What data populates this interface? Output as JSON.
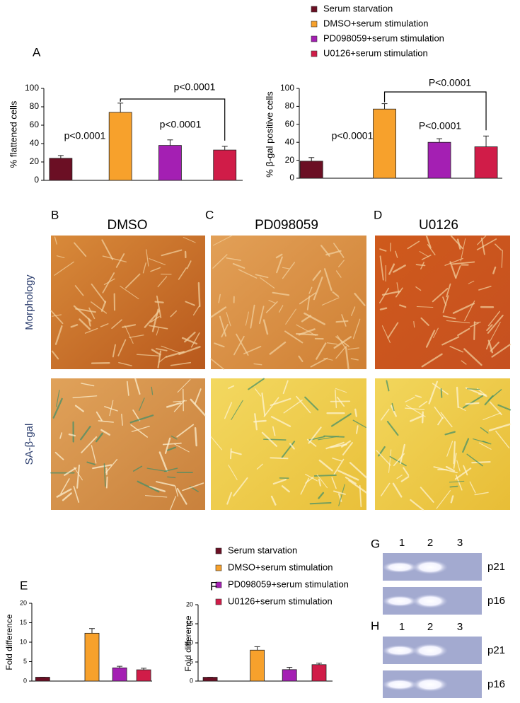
{
  "chart_data": [
    {
      "type": "bar",
      "panel": "A",
      "ylabel": "% flattened cells",
      "ylim": [
        0,
        100
      ],
      "yticks": [
        0,
        20,
        40,
        60,
        80,
        100
      ],
      "series": [
        {
          "name": "Serum starvation",
          "color": "#6b0f24",
          "values": [
            24
          ],
          "errors": [
            3
          ]
        },
        {
          "name": "DMSO+serum stimulation",
          "color": "#f7a12c",
          "values": [
            74
          ],
          "errors": [
            10
          ]
        },
        {
          "name": "PD098059+serum stimulation",
          "color": "#a41fb3",
          "values": [
            38
          ],
          "errors": [
            6
          ]
        },
        {
          "name": "U0126+serum stimulation",
          "color": "#d01c48",
          "values": [
            33
          ],
          "errors": [
            4
          ]
        }
      ],
      "annotations": [
        "p<0.0001",
        "p<0.0001",
        "p<0.0001"
      ]
    },
    {
      "type": "bar",
      "ylabel": "% β-gal positive cells",
      "ylim": [
        0,
        100
      ],
      "yticks": [
        0,
        20,
        40,
        60,
        80,
        100
      ],
      "series": [
        {
          "color": "#6b0f24",
          "values": [
            19
          ],
          "errors": [
            4
          ]
        },
        {
          "color": "#f7a12c",
          "values": [
            77
          ],
          "errors": [
            6
          ]
        },
        {
          "color": "#a41fb3",
          "values": [
            40
          ],
          "errors": [
            4
          ]
        },
        {
          "color": "#d01c48",
          "values": [
            35
          ],
          "errors": [
            12
          ]
        }
      ],
      "annotations": [
        "p<0.0001",
        "P<0.0001",
        "P<0.0001"
      ]
    },
    {
      "type": "bar",
      "panel": "E",
      "ylabel": "Fold difference",
      "ylim": [
        0,
        20
      ],
      "yticks": [
        0,
        5,
        10,
        15,
        20
      ],
      "series": [
        {
          "name": "Serum starvation",
          "color": "#6b0f24",
          "values": [
            1
          ],
          "errors": [
            0
          ]
        },
        {
          "name": "DMSO+serum stimulation",
          "color": "#f7a12c",
          "values": [
            12.3
          ],
          "errors": [
            1.2
          ]
        },
        {
          "name": "PD098059+serum stimulation",
          "color": "#a41fb3",
          "values": [
            3.4
          ],
          "errors": [
            0.4
          ]
        },
        {
          "name": "U0126+serum stimulation",
          "color": "#d01c48",
          "values": [
            2.9
          ],
          "errors": [
            0.4
          ]
        }
      ]
    },
    {
      "type": "bar",
      "panel": "F",
      "ylabel": "Fold difference",
      "ylim": [
        0,
        20
      ],
      "yticks": [
        0,
        5,
        10,
        15,
        20
      ],
      "series": [
        {
          "color": "#6b0f24",
          "values": [
            1
          ],
          "errors": [
            0
          ]
        },
        {
          "color": "#f7a12c",
          "values": [
            8.1
          ],
          "errors": [
            0.9
          ]
        },
        {
          "color": "#a41fb3",
          "values": [
            3
          ],
          "errors": [
            0.6
          ]
        },
        {
          "color": "#d01c48",
          "values": [
            4.3
          ],
          "errors": [
            0.4
          ]
        }
      ]
    }
  ],
  "images": {
    "panels": [
      "B",
      "C",
      "D"
    ],
    "columns": [
      "DMSO",
      "PD098059",
      "U0126"
    ],
    "rows": [
      "Morphology",
      "SA-β-gal"
    ]
  },
  "gels": [
    {
      "panel": "G",
      "lanes": [
        "1",
        "2",
        "3"
      ],
      "bands": [
        "p21",
        "p16"
      ]
    },
    {
      "panel": "H",
      "lanes": [
        "1",
        "2",
        "3"
      ],
      "bands": [
        "p21",
        "p16"
      ]
    }
  ]
}
